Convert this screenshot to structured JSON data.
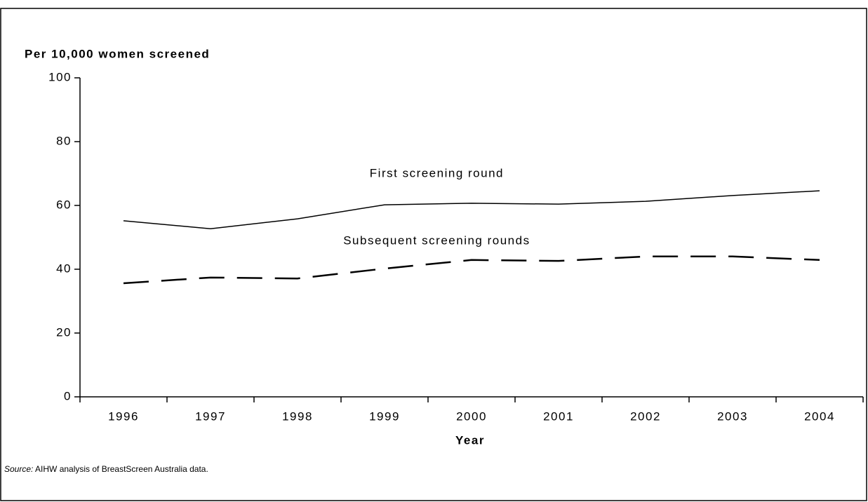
{
  "chart_data": {
    "type": "line",
    "y_axis_label": "Per 10,000 women screened",
    "x_axis_label": "Year",
    "categories": [
      "1996",
      "1997",
      "1998",
      "1999",
      "2000",
      "2001",
      "2002",
      "2003",
      "2004"
    ],
    "series": [
      {
        "name": "First screening round",
        "color": "#000000",
        "dashed": false,
        "values": [
          55.2,
          52.7,
          55.8,
          60.2,
          60.7,
          60.4,
          61.3,
          63.1,
          64.6
        ]
      },
      {
        "name": "Subsequent screening rounds",
        "color": "#000000",
        "dashed": true,
        "values": [
          35.6,
          37.4,
          37.1,
          40.2,
          42.9,
          42.6,
          44.0,
          44.0,
          42.9
        ]
      }
    ],
    "ylim": [
      0,
      100
    ],
    "yticks": [
      0,
      20,
      40,
      60,
      80,
      100
    ],
    "source_label": "Source:",
    "source_text": "AIHW analysis of BreastScreen Australia data."
  }
}
